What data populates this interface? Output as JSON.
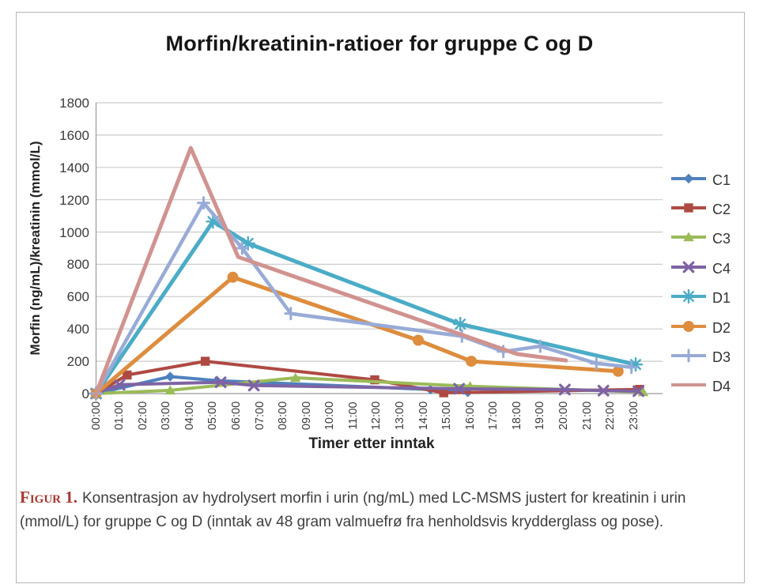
{
  "figure": {
    "caption_label": "Figur 1.",
    "caption_text": "Konsentrasjon av hydrolysert morfin i urin (ng/mL) med LC-MSMS justert for kreatinin i urin (mmol/L) for gruppe C og D (inntak av 48 gram valmuefrø fra henholdsvis krydderglass og pose)."
  },
  "chart_data": {
    "type": "line",
    "title": "Morfin/kreatinin-ratioer for gruppe C og D",
    "xlabel": "Timer etter inntak",
    "ylabel": "Morfin (ng/mL)/kreatinin (mmol/L)",
    "x_unit": "hours_after_intake",
    "x_tick_labels": [
      "00:00",
      "01:00",
      "02:00",
      "03:00",
      "04:00",
      "05:00",
      "06:00",
      "07:00",
      "08:00",
      "09:00",
      "10:00",
      "11:00",
      "12:00",
      "13:00",
      "14:00",
      "15:00",
      "16:00",
      "17:00",
      "18:00",
      "19:00",
      "20:00",
      "21:00",
      "22:00",
      "23:00"
    ],
    "y_ticks": [
      0,
      200,
      400,
      600,
      800,
      1000,
      1200,
      1400,
      1600,
      1800
    ],
    "ylim": [
      0,
      1800
    ],
    "grid": "horizontal",
    "legend_position": "right",
    "series": [
      {
        "name": "C1",
        "color": "#4F81BD",
        "marker": "diamond",
        "width": 4,
        "points": [
          {
            "t": 0,
            "v": 0
          },
          {
            "t": 3.17,
            "v": 105
          },
          {
            "t": 5.17,
            "v": 80
          },
          {
            "t": 14.3,
            "v": 25
          },
          {
            "t": 15.9,
            "v": 8
          }
        ]
      },
      {
        "name": "C2",
        "color": "#AE4A42",
        "marker": "square",
        "width": 4,
        "points": [
          {
            "t": 0,
            "v": 0
          },
          {
            "t": 1.33,
            "v": 115
          },
          {
            "t": 4.67,
            "v": 200
          },
          {
            "t": 11.92,
            "v": 85
          },
          {
            "t": 14.87,
            "v": 5
          },
          {
            "t": 23.25,
            "v": 26
          }
        ]
      },
      {
        "name": "C3",
        "color": "#9BBB59",
        "marker": "triangle",
        "width": 4,
        "points": [
          {
            "t": 0,
            "v": 0
          },
          {
            "t": 3.17,
            "v": 20
          },
          {
            "t": 8.53,
            "v": 98
          },
          {
            "t": 16.0,
            "v": 45
          },
          {
            "t": 23.4,
            "v": 10
          }
        ]
      },
      {
        "name": "C4",
        "color": "#7E63A4",
        "marker": "x",
        "width": 4,
        "points": [
          {
            "t": 0,
            "v": 0
          },
          {
            "t": 1.0,
            "v": 55
          },
          {
            "t": 5.33,
            "v": 70
          },
          {
            "t": 6.75,
            "v": 50
          },
          {
            "t": 15.53,
            "v": 30
          },
          {
            "t": 20.05,
            "v": 25
          },
          {
            "t": 21.7,
            "v": 18
          },
          {
            "t": 23.2,
            "v": 15
          }
        ]
      },
      {
        "name": "D1",
        "color": "#4BACC6",
        "marker": "asterisk",
        "width": 5,
        "points": [
          {
            "t": 0,
            "v": 0
          },
          {
            "t": 5.0,
            "v": 1065
          },
          {
            "t": 6.5,
            "v": 930
          },
          {
            "t": 15.58,
            "v": 430
          },
          {
            "t": 23.08,
            "v": 180
          }
        ]
      },
      {
        "name": "D2",
        "color": "#DD8D3D",
        "marker": "circle",
        "width": 5,
        "points": [
          {
            "t": 0,
            "v": 0
          },
          {
            "t": 5.85,
            "v": 720
          },
          {
            "t": 13.78,
            "v": 330
          },
          {
            "t": 16.05,
            "v": 200
          },
          {
            "t": 22.33,
            "v": 138
          }
        ]
      },
      {
        "name": "D3",
        "color": "#98ABD7",
        "marker": "plus",
        "width": 4.5,
        "points": [
          {
            "t": 0,
            "v": 0
          },
          {
            "t": 4.6,
            "v": 1180
          },
          {
            "t": 6.25,
            "v": 900
          },
          {
            "t": 8.33,
            "v": 495
          },
          {
            "t": 15.65,
            "v": 355
          },
          {
            "t": 17.42,
            "v": 260
          },
          {
            "t": 19.0,
            "v": 293
          },
          {
            "t": 21.4,
            "v": 187
          },
          {
            "t": 22.9,
            "v": 163
          }
        ]
      },
      {
        "name": "D4",
        "color": "#D09390",
        "marker": "none",
        "width": 5,
        "points": [
          {
            "t": 0,
            "v": 0
          },
          {
            "t": 4.05,
            "v": 1520
          },
          {
            "t": 6.08,
            "v": 845
          },
          {
            "t": 18.0,
            "v": 245
          },
          {
            "t": 20.1,
            "v": 205
          }
        ]
      }
    ]
  }
}
